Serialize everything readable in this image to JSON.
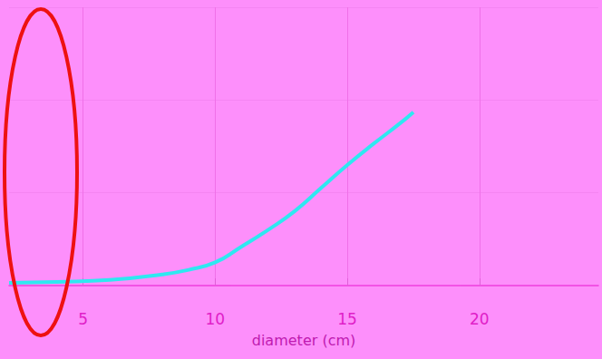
{
  "chart_data": {
    "type": "line",
    "xlabel": "diameter (cm)",
    "x": [
      2.2,
      4,
      6,
      8,
      9,
      10,
      11,
      12,
      13,
      14,
      15,
      16,
      17,
      17.5
    ],
    "values": [
      3,
      4,
      6,
      12,
      17,
      25,
      42,
      60,
      80,
      105,
      130,
      153,
      175,
      187
    ],
    "color": "#2ee8f0",
    "xlim": [
      2.2,
      24.5
    ],
    "xticks": [
      5,
      10,
      15,
      20
    ],
    "ylim": [
      0,
      300
    ],
    "yticks": [
      0,
      100,
      200,
      300
    ],
    "grid": true,
    "tick_labels": "x",
    "marker": "none",
    "line_style": "solid"
  }
}
